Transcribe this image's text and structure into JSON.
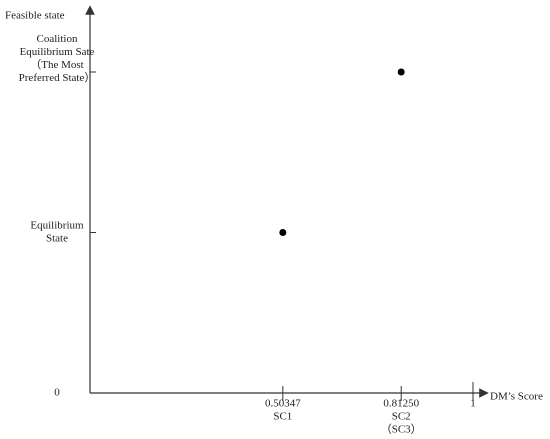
{
  "chart_data": {
    "type": "scatter",
    "y_title": "Feasible state",
    "x_title": "DM’s Score",
    "y_categories": [
      [
        "0"
      ],
      [
        "Equilibrium",
        "State"
      ],
      [
        "Coalition",
        "Equilibrium Sate",
        "（The Most",
        "Preferred State）"
      ]
    ],
    "xlim": [
      0,
      1.0313
    ],
    "xticks": [
      0.50347,
      {
        "value": 0.8125,
        "label": "0.81250"
      },
      1
    ],
    "x": [
      0.50347,
      0.8125
    ],
    "values": [
      1,
      2
    ],
    "point_names": [
      [
        "SC1"
      ],
      [
        "SC2",
        "（SC3）"
      ]
    ],
    "color": "#000000"
  }
}
